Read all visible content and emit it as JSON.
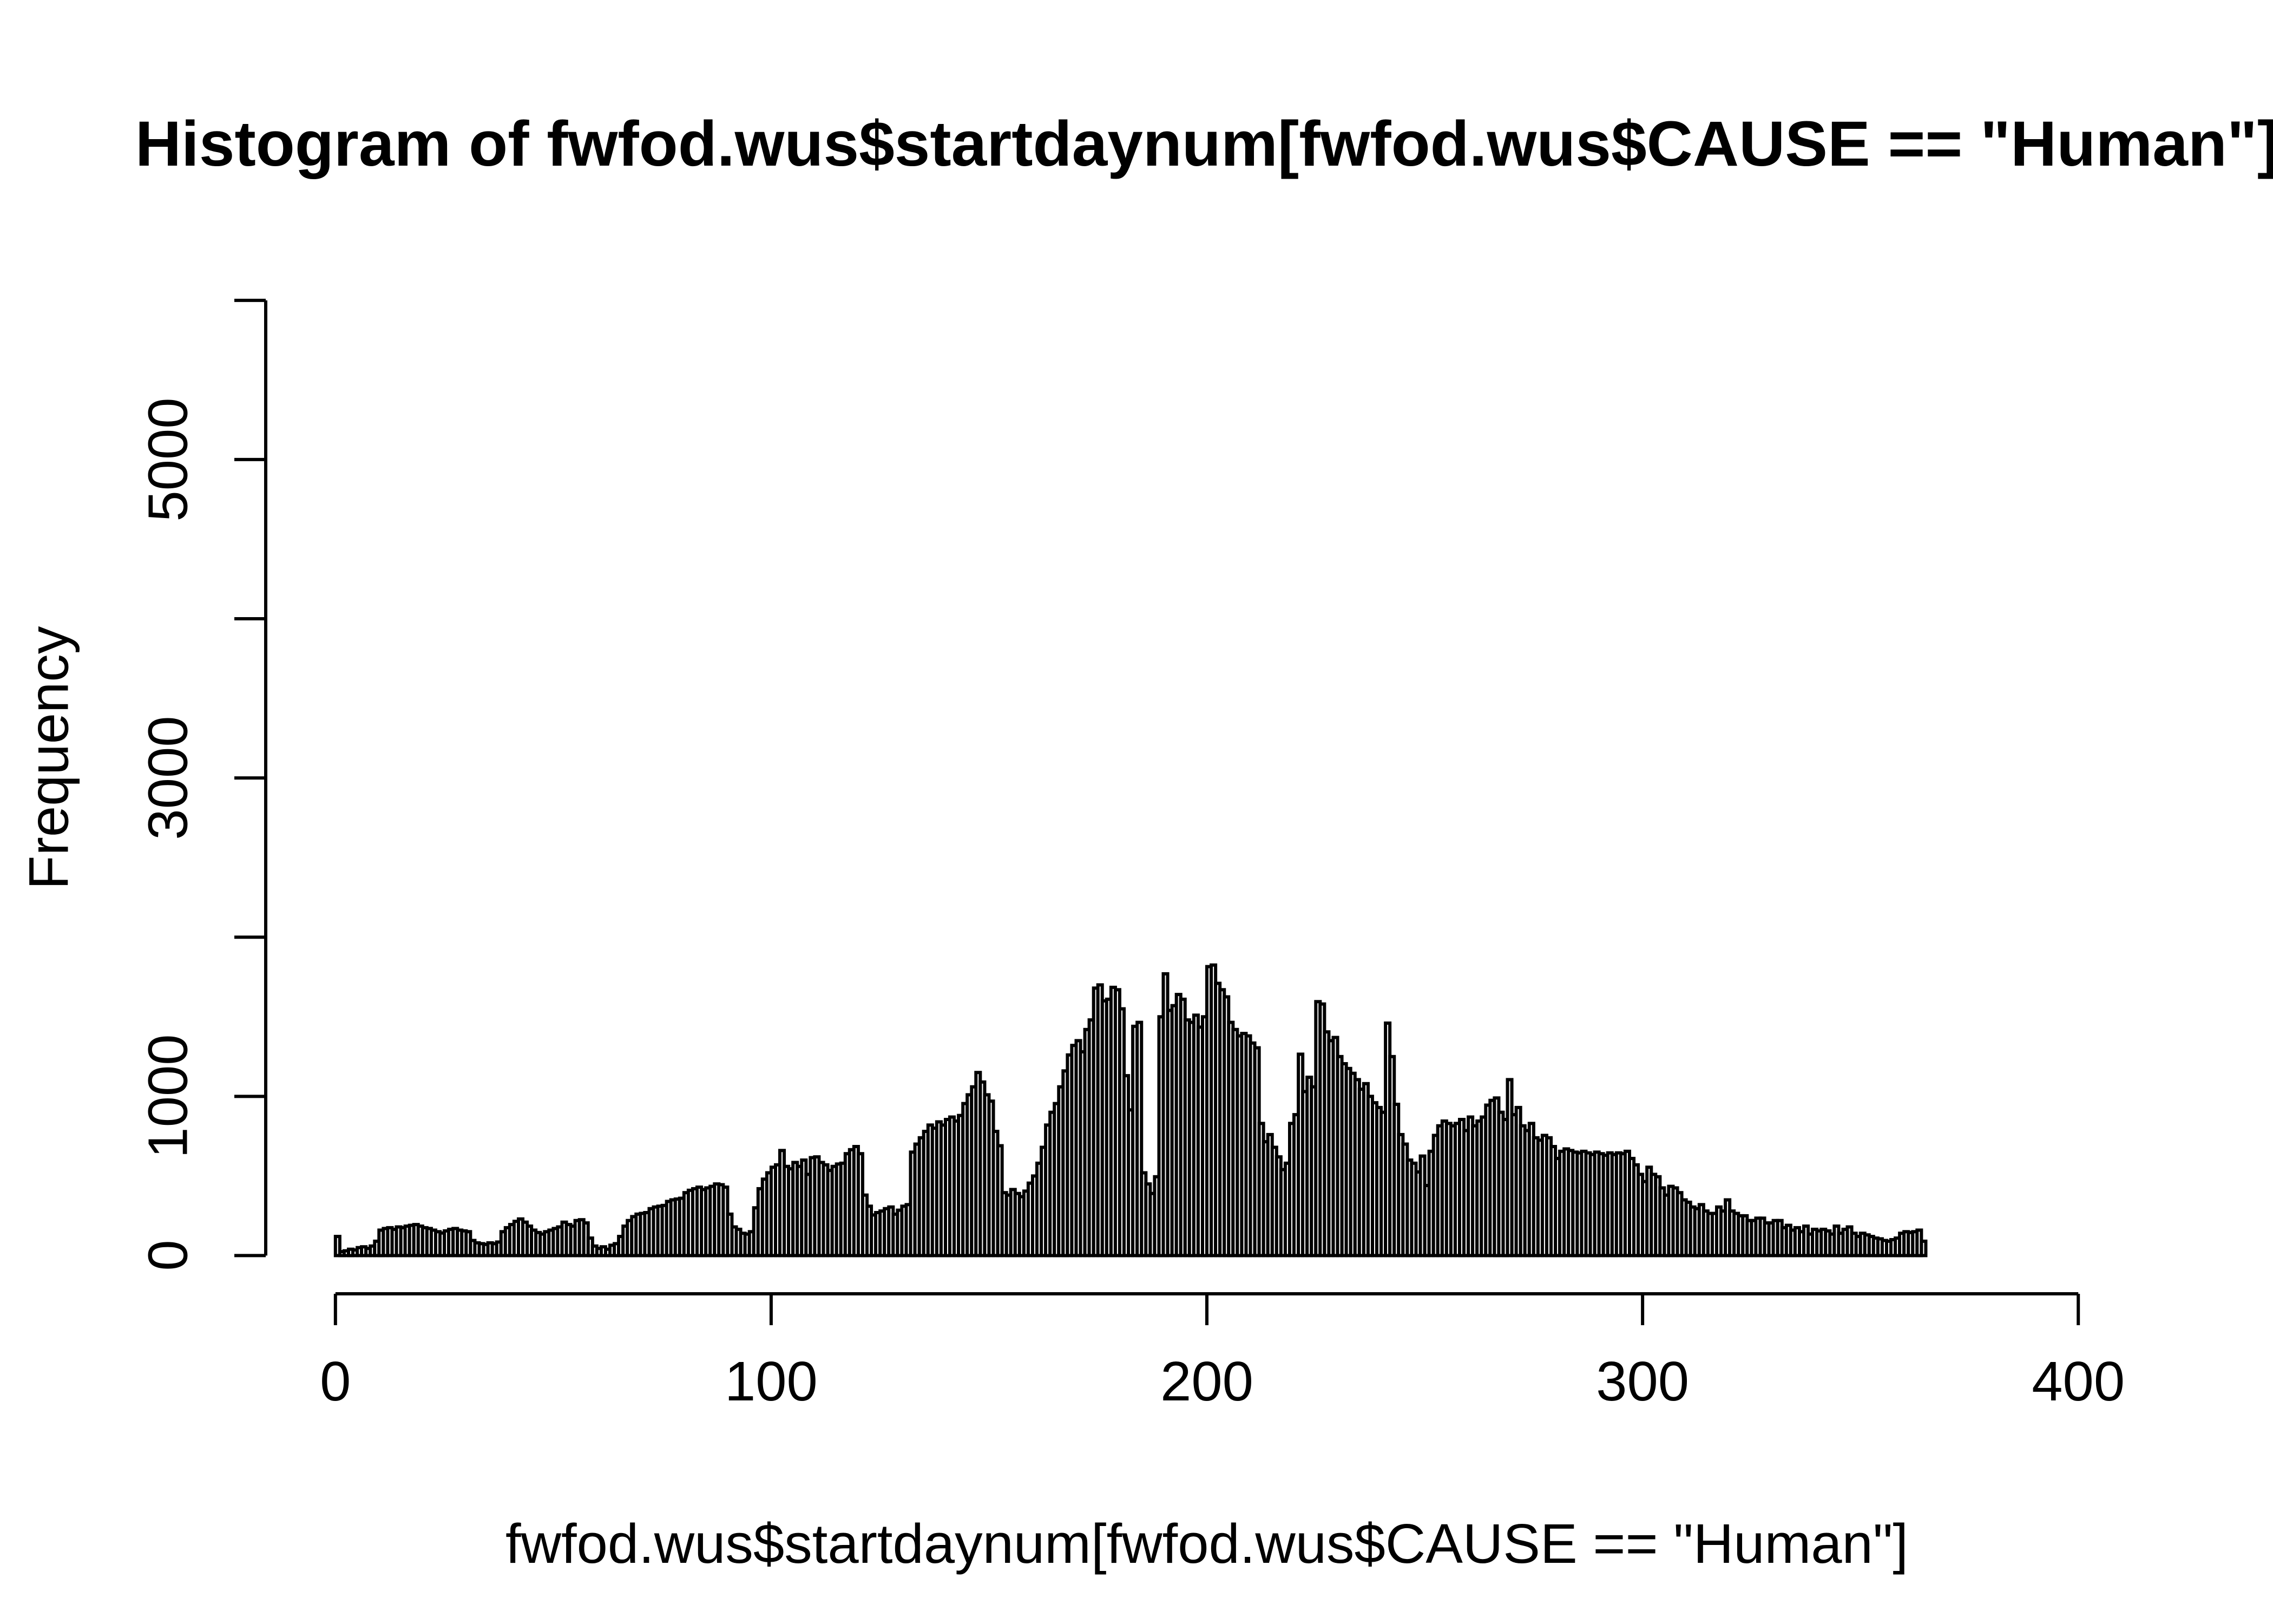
{
  "title": "Histogram of fwfod.wus$startdaynum[fwfod.wus$CAUSE == \"Human\"]",
  "colors": {
    "foreground": "#000000",
    "background": "#ffffff",
    "bar_fill": "#ffffff",
    "bar_stroke": "#000000"
  },
  "chart_data": {
    "type": "bar",
    "subtype": "histogram",
    "title": "Histogram of fwfod.wus$startdaynum[fwfod.wus$CAUSE == \"Human\"]",
    "xlabel": "fwfod.wus$startdaynum[fwfod.wus$CAUSE == \"Human\"]",
    "ylabel": "Frequency",
    "xlim": [
      0,
      400
    ],
    "ylim": [
      0,
      6000
    ],
    "grid": false,
    "legend": "none",
    "bin_start": 0,
    "bin_width": 1,
    "x_ticks": [
      0,
      100,
      200,
      300,
      400
    ],
    "x_tick_labels": [
      "0",
      "100",
      "200",
      "300",
      "400"
    ],
    "y_ticks": [
      0,
      1000,
      2000,
      3000,
      4000,
      5000,
      6000
    ],
    "y_tick_labels": [
      "0",
      "1000",
      "",
      "3000",
      "",
      "5000",
      ""
    ],
    "values": [
      120,
      25,
      30,
      40,
      35,
      50,
      55,
      45,
      60,
      90,
      160,
      170,
      175,
      165,
      180,
      175,
      185,
      190,
      195,
      185,
      175,
      170,
      160,
      150,
      142,
      155,
      165,
      170,
      160,
      155,
      150,
      95,
      80,
      75,
      70,
      80,
      75,
      85,
      150,
      175,
      195,
      215,
      230,
      210,
      185,
      160,
      145,
      135,
      150,
      160,
      170,
      180,
      210,
      195,
      185,
      220,
      225,
      205,
      110,
      60,
      45,
      55,
      40,
      65,
      75,
      120,
      185,
      220,
      245,
      260,
      265,
      270,
      295,
      305,
      310,
      315,
      340,
      350,
      355,
      360,
      395,
      410,
      420,
      430,
      415,
      425,
      435,
      450,
      445,
      430,
      260,
      180,
      165,
      140,
      135,
      150,
      300,
      420,
      480,
      520,
      555,
      570,
      660,
      560,
      545,
      585,
      560,
      600,
      510,
      615,
      620,
      585,
      570,
      535,
      560,
      575,
      580,
      640,
      665,
      685,
      640,
      380,
      310,
      255,
      270,
      280,
      295,
      305,
      260,
      285,
      310,
      320,
      650,
      700,
      740,
      780,
      820,
      800,
      840,
      820,
      855,
      870,
      845,
      880,
      955,
      1010,
      1060,
      1150,
      1090,
      1010,
      970,
      780,
      690,
      395,
      380,
      415,
      390,
      370,
      405,
      455,
      500,
      580,
      680,
      820,
      900,
      955,
      1060,
      1160,
      1260,
      1320,
      1350,
      1280,
      1420,
      1480,
      1680,
      1700,
      1600,
      1610,
      1685,
      1670,
      1550,
      1130,
      915,
      1440,
      1465,
      520,
      450,
      390,
      495,
      1500,
      1770,
      1540,
      1570,
      1640,
      1610,
      1480,
      1465,
      1510,
      1435,
      1500,
      1815,
      1825,
      1710,
      1670,
      1625,
      1465,
      1420,
      1380,
      1395,
      1380,
      1335,
      1305,
      830,
      715,
      760,
      680,
      620,
      540,
      580,
      830,
      885,
      1265,
      1030,
      1120,
      1060,
      1595,
      1580,
      1405,
      1350,
      1370,
      1250,
      1205,
      1175,
      1145,
      1105,
      1045,
      1080,
      1000,
      960,
      930,
      900,
      1460,
      1250,
      950,
      760,
      700,
      600,
      580,
      525,
      625,
      440,
      655,
      755,
      815,
      845,
      830,
      815,
      830,
      855,
      785,
      870,
      815,
      845,
      870,
      945,
      975,
      990,
      900,
      855,
      1105,
      885,
      930,
      815,
      785,
      830,
      740,
      725,
      755,
      740,
      685,
      610,
      655,
      670,
      660,
      650,
      645,
      655,
      645,
      635,
      650,
      640,
      630,
      645,
      635,
      645,
      640,
      655,
      610,
      570,
      510,
      465,
      555,
      510,
      495,
      425,
      380,
      435,
      425,
      395,
      350,
      335,
      305,
      295,
      320,
      280,
      265,
      265,
      305,
      280,
      350,
      280,
      265,
      250,
      250,
      220,
      220,
      235,
      235,
      205,
      205,
      220,
      220,
      175,
      190,
      160,
      175,
      150,
      185,
      135,
      165,
      155,
      165,
      155,
      135,
      185,
      140,
      165,
      180,
      140,
      120,
      140,
      130,
      120,
      110,
      105,
      95,
      90,
      100,
      110,
      140,
      150,
      145,
      150,
      160,
      90
    ]
  }
}
